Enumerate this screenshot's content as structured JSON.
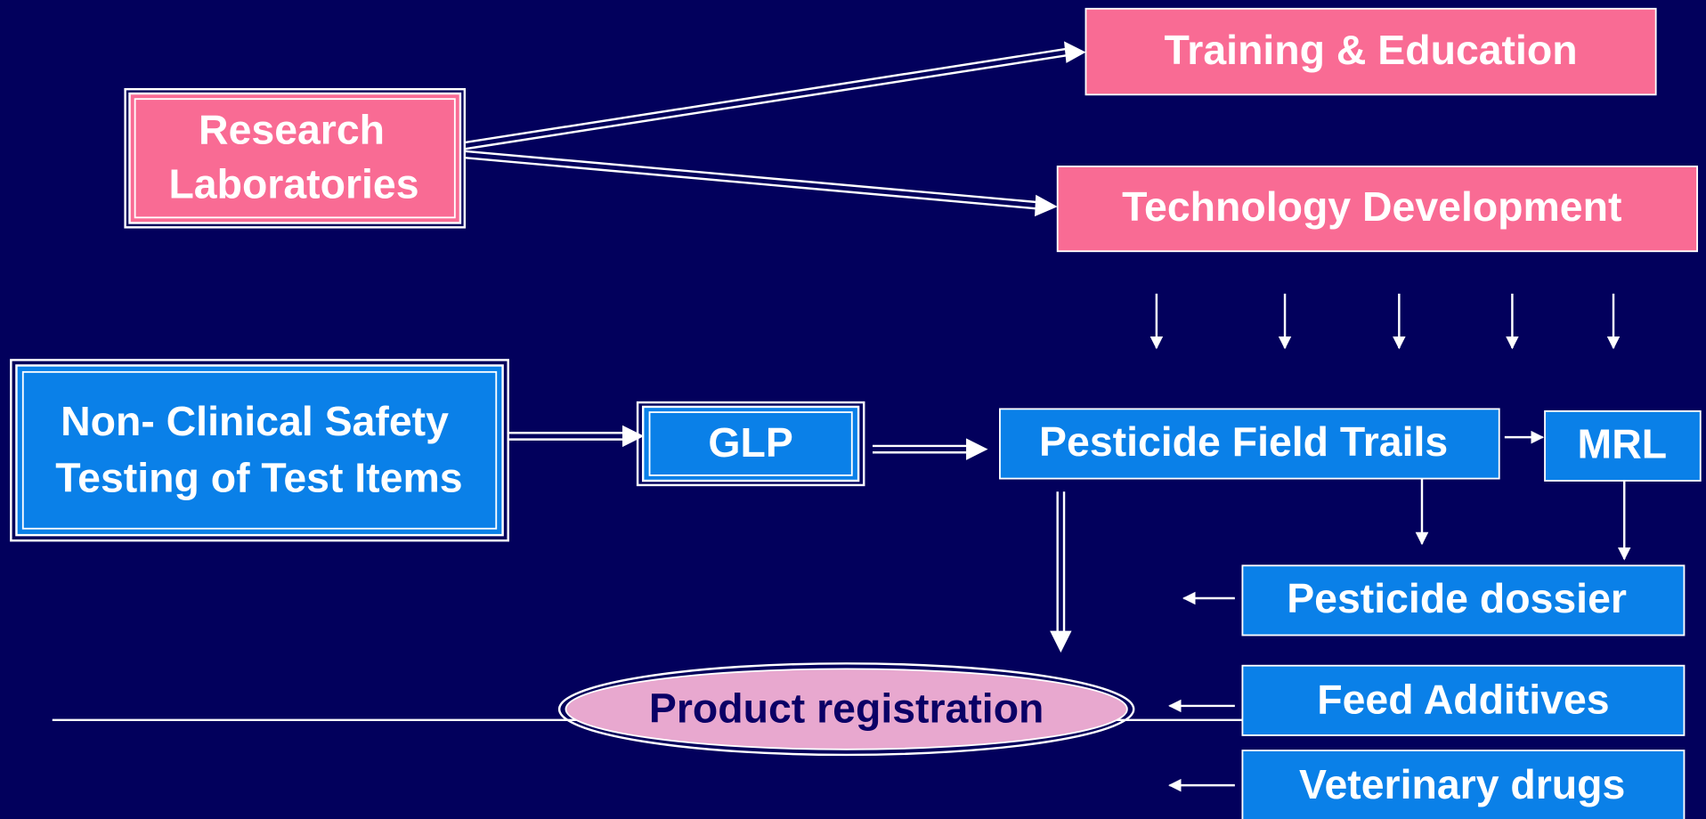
{
  "nodes": [
    {
      "lines": [
        "Training & Education"
      ]
    },
    {
      "lines": [
        "Research",
        "Laboratories"
      ]
    },
    {
      "lines": [
        "Technology Development"
      ]
    },
    {
      "lines": [
        "Non- Clinical Safety",
        "Testing of Test Items"
      ]
    },
    {
      "lines": [
        "GLP"
      ]
    },
    {
      "lines": [
        "Pesticide Field Trails"
      ]
    },
    {
      "lines": [
        "MRL"
      ]
    },
    {
      "lines": [
        "Pesticide dossier"
      ]
    },
    {
      "lines": [
        "Product registration"
      ]
    },
    {
      "lines": [
        "Feed Additives"
      ]
    },
    {
      "lines": [
        "Veterinary drugs"
      ]
    }
  ]
}
